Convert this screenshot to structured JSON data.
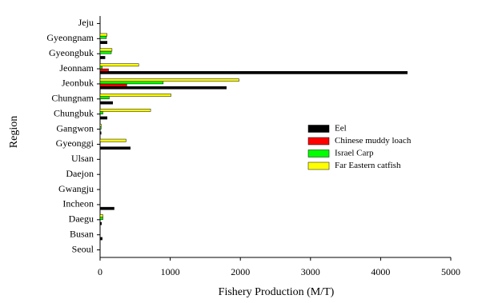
{
  "chart_data": {
    "type": "hbar",
    "x_label": "Fishery Production (M/T)",
    "y_label": "Region",
    "categories": [
      "Jeju",
      "Gyeongnam",
      "Gyeongbuk",
      "Jeonnam",
      "Jeonbuk",
      "Chungnam",
      "Chungbuk",
      "Gangwon",
      "Gyeonggi",
      "Ulsan",
      "Daejon",
      "Gwangju",
      "Incheon",
      "Daegu",
      "Busan",
      "Seoul"
    ],
    "series": [
      {
        "name": "Eel",
        "color": "#000000",
        "values": [
          0,
          100,
          70,
          4380,
          1800,
          180,
          100,
          15,
          430,
          0,
          0,
          0,
          200,
          20,
          30,
          0
        ]
      },
      {
        "name": "Chinese muddy loach",
        "color": "#ff0000",
        "values": [
          0,
          0,
          0,
          120,
          380,
          0,
          0,
          0,
          0,
          0,
          0,
          0,
          0,
          0,
          0,
          0
        ]
      },
      {
        "name": "Israel Carp",
        "color": "#00ff00",
        "values": [
          0,
          90,
          160,
          30,
          900,
          130,
          40,
          15,
          0,
          0,
          0,
          0,
          0,
          40,
          0,
          0
        ]
      },
      {
        "name": "Far Eastern catfish",
        "color": "#ffff00",
        "values": [
          0,
          100,
          170,
          550,
          1980,
          1010,
          720,
          15,
          370,
          0,
          0,
          0,
          0,
          40,
          0,
          0
        ]
      }
    ],
    "xlim": [
      0,
      5000
    ],
    "xticks": [
      0,
      1000,
      2000,
      3000,
      4000,
      5000
    ],
    "legend": "right"
  }
}
